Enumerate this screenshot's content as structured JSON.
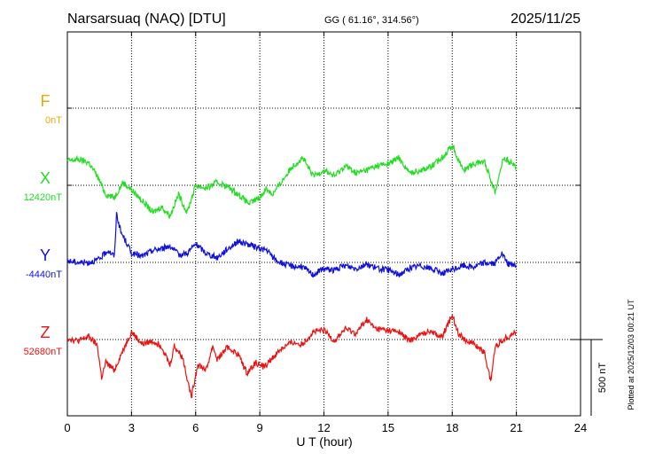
{
  "header": {
    "station": "Narsarsuaq (NAQ)  [DTU]",
    "coords": "GG ( 61.16°, 314.56°)",
    "date": "2025/11/25"
  },
  "footer": {
    "plotted": "Plotted at 2025/12/03 00:21 UT"
  },
  "chart_data": {
    "type": "line",
    "xlabel": "U T (hour)",
    "xlim": [
      0,
      24
    ],
    "xticks": [
      0,
      3,
      6,
      9,
      12,
      15,
      18,
      21,
      24
    ],
    "grid": true,
    "scale_bar": "500 nT",
    "channels": [
      {
        "name": "F",
        "baseline": "0nT",
        "color": "#f0a800",
        "points": []
      },
      {
        "name": "X",
        "baseline": "12420nT",
        "color": "#22dd22",
        "points": [
          [
            0,
            160
          ],
          [
            0.5,
            170
          ],
          [
            1.0,
            150
          ],
          [
            1.4,
            60
          ],
          [
            1.8,
            -60
          ],
          [
            2.2,
            -80
          ],
          [
            2.6,
            20
          ],
          [
            3.0,
            -30
          ],
          [
            3.5,
            -100
          ],
          [
            4.0,
            -180
          ],
          [
            4.4,
            -140
          ],
          [
            4.8,
            -200
          ],
          [
            5.2,
            -60
          ],
          [
            5.6,
            -180
          ],
          [
            6.0,
            0
          ],
          [
            6.5,
            -20
          ],
          [
            7.0,
            20
          ],
          [
            7.5,
            -10
          ],
          [
            8.0,
            -60
          ],
          [
            8.5,
            -120
          ],
          [
            9.0,
            -80
          ],
          [
            9.3,
            -20
          ],
          [
            9.6,
            -60
          ],
          [
            10.0,
            20
          ],
          [
            10.5,
            120
          ],
          [
            11.0,
            180
          ],
          [
            11.5,
            60
          ],
          [
            12.0,
            100
          ],
          [
            12.5,
            60
          ],
          [
            13.0,
            130
          ],
          [
            13.5,
            80
          ],
          [
            14.0,
            100
          ],
          [
            14.5,
            130
          ],
          [
            15.0,
            140
          ],
          [
            15.5,
            180
          ],
          [
            16.0,
            80
          ],
          [
            16.5,
            100
          ],
          [
            17.0,
            120
          ],
          [
            17.5,
            180
          ],
          [
            18.0,
            260
          ],
          [
            18.5,
            100
          ],
          [
            19.0,
            140
          ],
          [
            19.5,
            160
          ],
          [
            20.0,
            -40
          ],
          [
            20.4,
            180
          ],
          [
            21.0,
            120
          ]
        ]
      },
      {
        "name": "Y",
        "baseline": "-4440nT",
        "color": "#1111dd",
        "points": [
          [
            0,
            10
          ],
          [
            0.5,
            0
          ],
          [
            1.0,
            0
          ],
          [
            1.5,
            20
          ],
          [
            1.9,
            80
          ],
          [
            2.2,
            40
          ],
          [
            2.3,
            320
          ],
          [
            2.5,
            200
          ],
          [
            2.8,
            120
          ],
          [
            3.0,
            60
          ],
          [
            3.5,
            40
          ],
          [
            4.0,
            80
          ],
          [
            4.4,
            90
          ],
          [
            4.8,
            110
          ],
          [
            5.2,
            50
          ],
          [
            5.6,
            60
          ],
          [
            6.0,
            120
          ],
          [
            6.5,
            60
          ],
          [
            7.0,
            30
          ],
          [
            7.5,
            90
          ],
          [
            8.0,
            140
          ],
          [
            8.4,
            120
          ],
          [
            8.8,
            100
          ],
          [
            9.3,
            80
          ],
          [
            9.8,
            10
          ],
          [
            10.3,
            -20
          ],
          [
            11.0,
            -30
          ],
          [
            11.5,
            -80
          ],
          [
            12.0,
            -40
          ],
          [
            12.5,
            -50
          ],
          [
            13.0,
            -20
          ],
          [
            13.5,
            -40
          ],
          [
            14.0,
            -10
          ],
          [
            14.5,
            -40
          ],
          [
            15.0,
            -50
          ],
          [
            15.5,
            -80
          ],
          [
            16.0,
            -40
          ],
          [
            16.5,
            -20
          ],
          [
            17.0,
            -40
          ],
          [
            17.5,
            -70
          ],
          [
            18.0,
            -50
          ],
          [
            18.5,
            -20
          ],
          [
            19.0,
            -30
          ],
          [
            19.5,
            0
          ],
          [
            20.0,
            -10
          ],
          [
            20.3,
            60
          ],
          [
            20.6,
            -10
          ],
          [
            21.0,
            -20
          ]
        ]
      },
      {
        "name": "Z",
        "baseline": "52680nT",
        "color": "#ee1111",
        "points": [
          [
            0,
            10
          ],
          [
            0.5,
            -10
          ],
          [
            1.0,
            20
          ],
          [
            1.4,
            -40
          ],
          [
            1.6,
            -250
          ],
          [
            1.8,
            -150
          ],
          [
            2.2,
            -200
          ],
          [
            2.6,
            -70
          ],
          [
            3.0,
            50
          ],
          [
            3.5,
            -30
          ],
          [
            4.0,
            -10
          ],
          [
            4.4,
            -40
          ],
          [
            4.8,
            -170
          ],
          [
            5.0,
            -40
          ],
          [
            5.4,
            -120
          ],
          [
            5.8,
            -380
          ],
          [
            6.1,
            -160
          ],
          [
            6.5,
            -200
          ],
          [
            6.8,
            -40
          ],
          [
            7.0,
            -130
          ],
          [
            7.5,
            -50
          ],
          [
            8.0,
            -100
          ],
          [
            8.4,
            -220
          ],
          [
            8.8,
            -150
          ],
          [
            9.2,
            -180
          ],
          [
            9.6,
            -120
          ],
          [
            10.0,
            -60
          ],
          [
            10.5,
            -20
          ],
          [
            11.0,
            -30
          ],
          [
            11.5,
            50
          ],
          [
            12.0,
            60
          ],
          [
            12.5,
            -10
          ],
          [
            13.0,
            70
          ],
          [
            13.5,
            40
          ],
          [
            14.0,
            130
          ],
          [
            14.4,
            70
          ],
          [
            15.0,
            60
          ],
          [
            15.5,
            50
          ],
          [
            16.0,
            -10
          ],
          [
            16.5,
            30
          ],
          [
            17.0,
            60
          ],
          [
            17.5,
            10
          ],
          [
            18.0,
            160
          ],
          [
            18.3,
            40
          ],
          [
            18.6,
            0
          ],
          [
            19.0,
            -30
          ],
          [
            19.5,
            -80
          ],
          [
            19.8,
            -280
          ],
          [
            20.0,
            -50
          ],
          [
            20.4,
            0
          ],
          [
            21.0,
            50
          ]
        ]
      }
    ]
  }
}
